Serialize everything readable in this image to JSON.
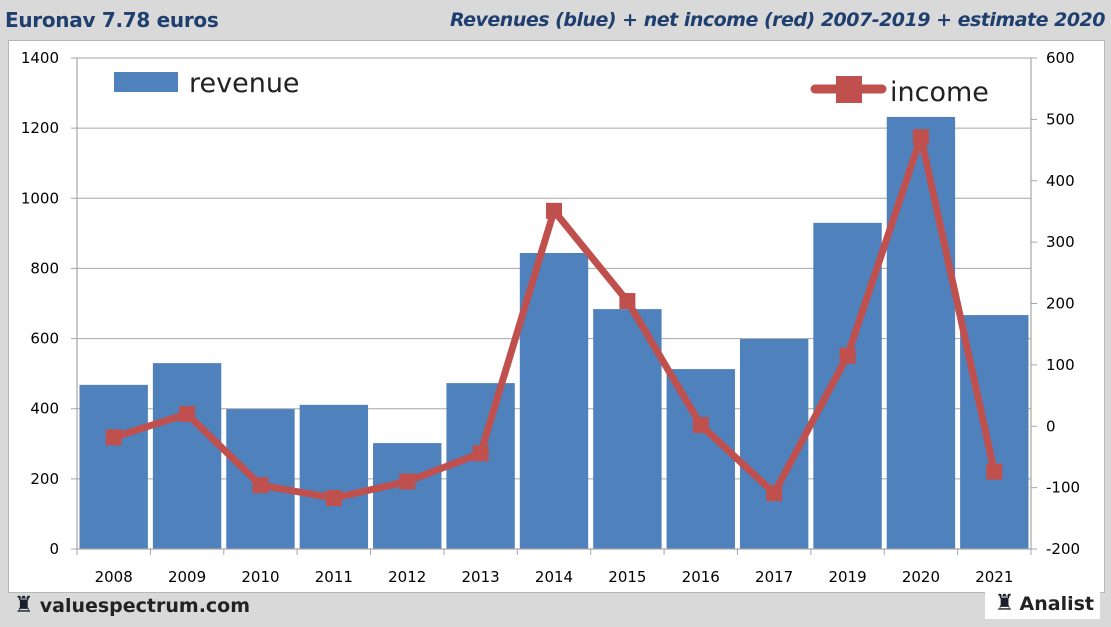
{
  "header": {
    "left_title": "Euronav 7.78 euros",
    "right_title": "Revenues (blue) + net income (red) 2007-2019 + estimate 2020"
  },
  "footer": {
    "left_brand": "valuespectrum.com",
    "right_brand": "Analist",
    "left_icon": "rook-icon",
    "right_icon": "rook-icon"
  },
  "colors": {
    "revenue": "#4f81bd",
    "income": "#c0504d",
    "title": "#1f3f6e",
    "grid": "#a6a6a6"
  },
  "chart_data": {
    "type": "bar+line",
    "title": "Revenues (blue) + net income (red) 2007-2019 + estimate 2020",
    "categories": [
      "2008",
      "2009",
      "2010",
      "2011",
      "2012",
      "2013",
      "2014",
      "2015",
      "2016",
      "2017",
      "2019",
      "2020",
      "2021"
    ],
    "series": [
      {
        "name": "revenue",
        "type": "bar",
        "axis": "left",
        "values": [
          468,
          530,
          399,
          411,
          302,
          473,
          844,
          684,
          513,
          599,
          930,
          1232,
          667
        ]
      },
      {
        "name": "income",
        "type": "line",
        "axis": "right",
        "values": [
          -18,
          20,
          -96,
          -117,
          -90,
          -44,
          351,
          204,
          2,
          -109,
          115,
          471,
          -74
        ]
      }
    ],
    "left_axis": {
      "ylim": [
        0,
        1400
      ],
      "ticks": [
        "0",
        "200",
        "400",
        "600",
        "800",
        "1000",
        "1200",
        "1400"
      ]
    },
    "right_axis": {
      "ylim": [
        -200,
        600
      ],
      "ticks": [
        "-200",
        "-100",
        "0",
        "100",
        "200",
        "300",
        "400",
        "500",
        "600"
      ]
    },
    "grid": true,
    "legend": [
      {
        "label": "revenue",
        "placement": "top-left"
      },
      {
        "label": "income",
        "placement": "top-right"
      }
    ]
  }
}
